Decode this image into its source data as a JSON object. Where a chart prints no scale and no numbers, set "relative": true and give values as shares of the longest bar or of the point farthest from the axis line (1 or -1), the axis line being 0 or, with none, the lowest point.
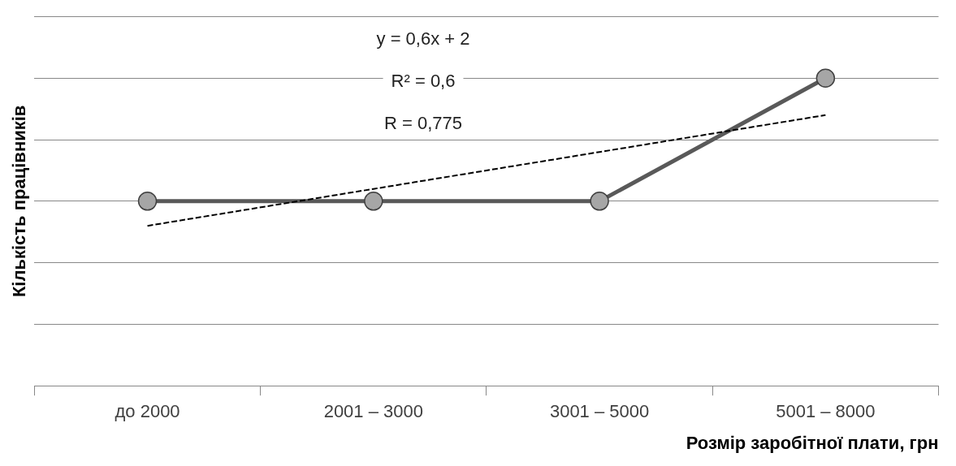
{
  "chart_data": {
    "type": "line",
    "relative": true,
    "xlabel": "Розмір заробітної плати, грн",
    "ylabel": "Кількість працівників",
    "categories": [
      "до 2000",
      "2001 – 3000",
      "3001 – 5000",
      "5001 – 8000"
    ],
    "series": [
      {
        "color": "#595959",
        "values": [
          0.6,
          0.6,
          0.6,
          1
        ],
        "marker": "circle",
        "line_style": "solid"
      },
      {
        "type": "line",
        "color": "#000000",
        "values": [
          0.52,
          0.64,
          0.76,
          0.88
        ],
        "marker": "none",
        "line_style": "dashed"
      }
    ],
    "annotations": [
      "y = 0,6x + 2",
      "R² = 0,6",
      "R = 0,775"
    ],
    "grid": "y",
    "legend": false
  }
}
